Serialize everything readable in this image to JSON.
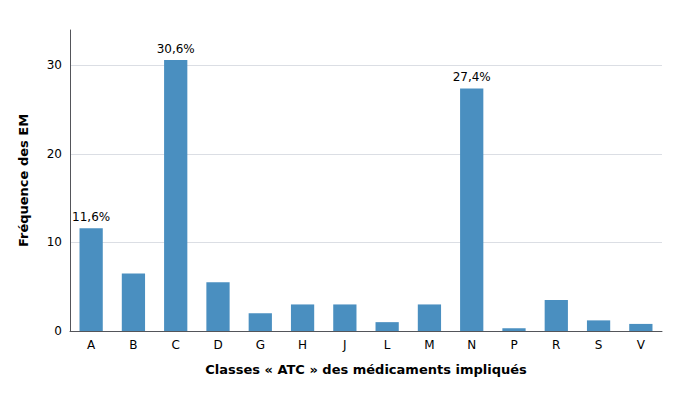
{
  "chart_data": {
    "type": "bar",
    "categories": [
      "A",
      "B",
      "C",
      "D",
      "G",
      "H",
      "J",
      "L",
      "M",
      "N",
      "P",
      "R",
      "S",
      "V"
    ],
    "values": [
      11.6,
      6.5,
      30.6,
      5.5,
      2.0,
      3.0,
      3.0,
      1.0,
      3.0,
      27.4,
      0.3,
      3.5,
      1.2,
      0.8
    ],
    "value_labels": [
      "11,6%",
      null,
      "30,6%",
      null,
      null,
      null,
      null,
      null,
      null,
      "27,4%",
      null,
      null,
      null,
      null
    ],
    "color": "#4a8fc0",
    "xlabel": "Classes « ATC » des médicaments impliqués",
    "ylabel": "Fréquence des EM",
    "ylim": [
      0,
      34
    ],
    "yticks": [
      0,
      10,
      20,
      30
    ],
    "grid": true
  }
}
